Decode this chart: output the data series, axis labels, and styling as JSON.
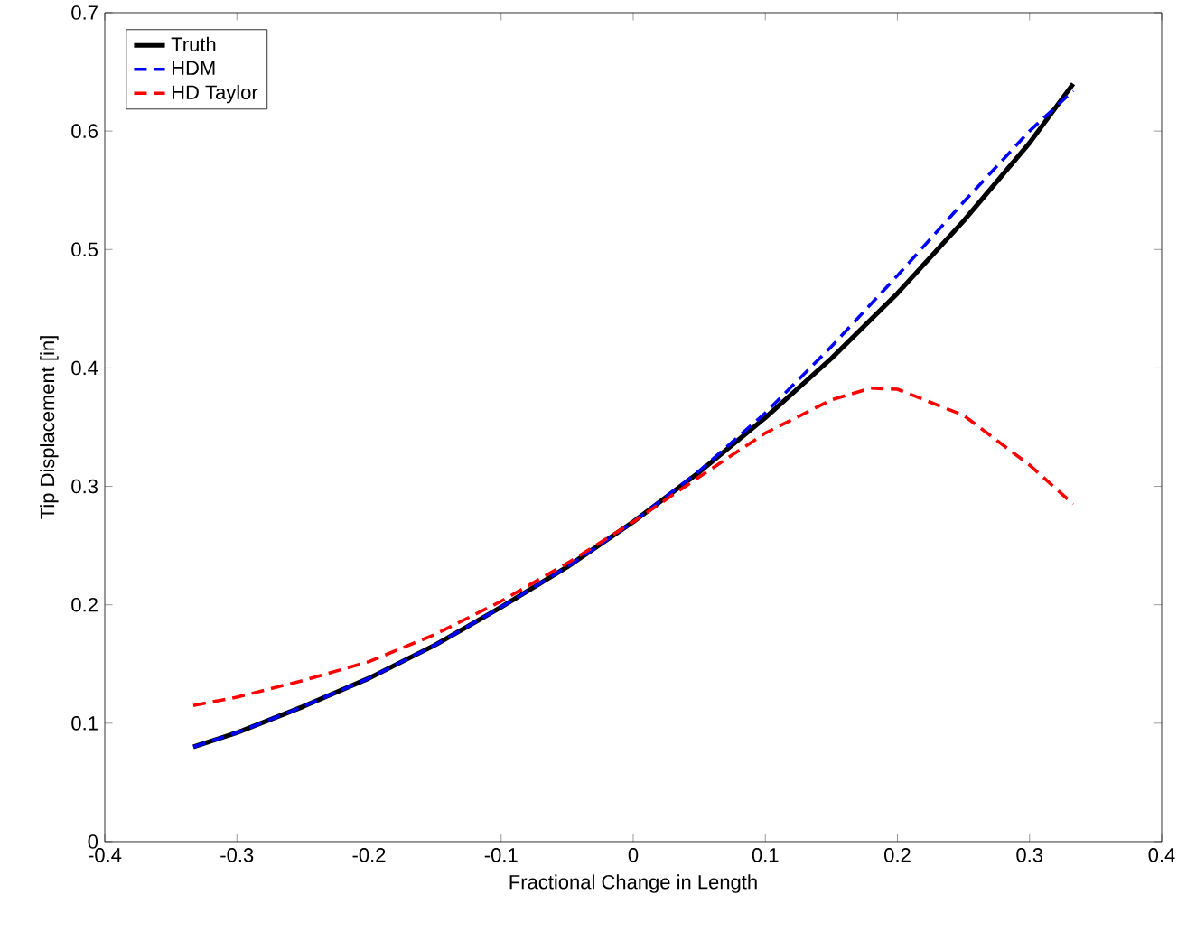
{
  "chart_data": {
    "type": "line",
    "xlabel": "Fractional Change in Length",
    "ylabel": "Tip Displacement [in]",
    "xlim": [
      -0.4,
      0.4
    ],
    "ylim": [
      0,
      0.7
    ],
    "xticks": [
      -0.4,
      -0.3,
      -0.2,
      -0.1,
      0,
      0.1,
      0.2,
      0.3,
      0.4
    ],
    "yticks": [
      0,
      0.1,
      0.2,
      0.3,
      0.4,
      0.5,
      0.6,
      0.7
    ],
    "grid": false,
    "legend": "top left",
    "series": [
      {
        "name": "Truth",
        "color": "#000000",
        "line_style": "solid",
        "x": [
          -0.333,
          -0.3,
          -0.25,
          -0.2,
          -0.15,
          -0.1,
          -0.05,
          0,
          0.05,
          0.1,
          0.15,
          0.2,
          0.25,
          0.3,
          0.333
        ],
        "values": [
          0.08,
          0.092,
          0.114,
          0.138,
          0.166,
          0.198,
          0.232,
          0.27,
          0.312,
          0.358,
          0.408,
          0.463,
          0.524,
          0.59,
          0.64
        ]
      },
      {
        "name": "HDM",
        "color": "#0000ff",
        "line_style": "dashed",
        "x": [
          -0.333,
          -0.3,
          -0.25,
          -0.2,
          -0.15,
          -0.1,
          -0.05,
          0,
          0.05,
          0.1,
          0.15,
          0.2,
          0.25,
          0.3,
          0.333
        ],
        "values": [
          0.08,
          0.092,
          0.114,
          0.138,
          0.166,
          0.198,
          0.232,
          0.27,
          0.313,
          0.362,
          0.418,
          0.478,
          0.54,
          0.6,
          0.634
        ]
      },
      {
        "name": "HD Taylor",
        "color": "#ff0000",
        "line_style": "dashed",
        "x": [
          -0.333,
          -0.3,
          -0.25,
          -0.2,
          -0.15,
          -0.1,
          -0.05,
          0,
          0.05,
          0.1,
          0.15,
          0.18,
          0.2,
          0.25,
          0.3,
          0.333
        ],
        "values": [
          0.115,
          0.122,
          0.136,
          0.152,
          0.175,
          0.203,
          0.235,
          0.27,
          0.308,
          0.345,
          0.373,
          0.383,
          0.382,
          0.36,
          0.318,
          0.285
        ]
      }
    ]
  }
}
